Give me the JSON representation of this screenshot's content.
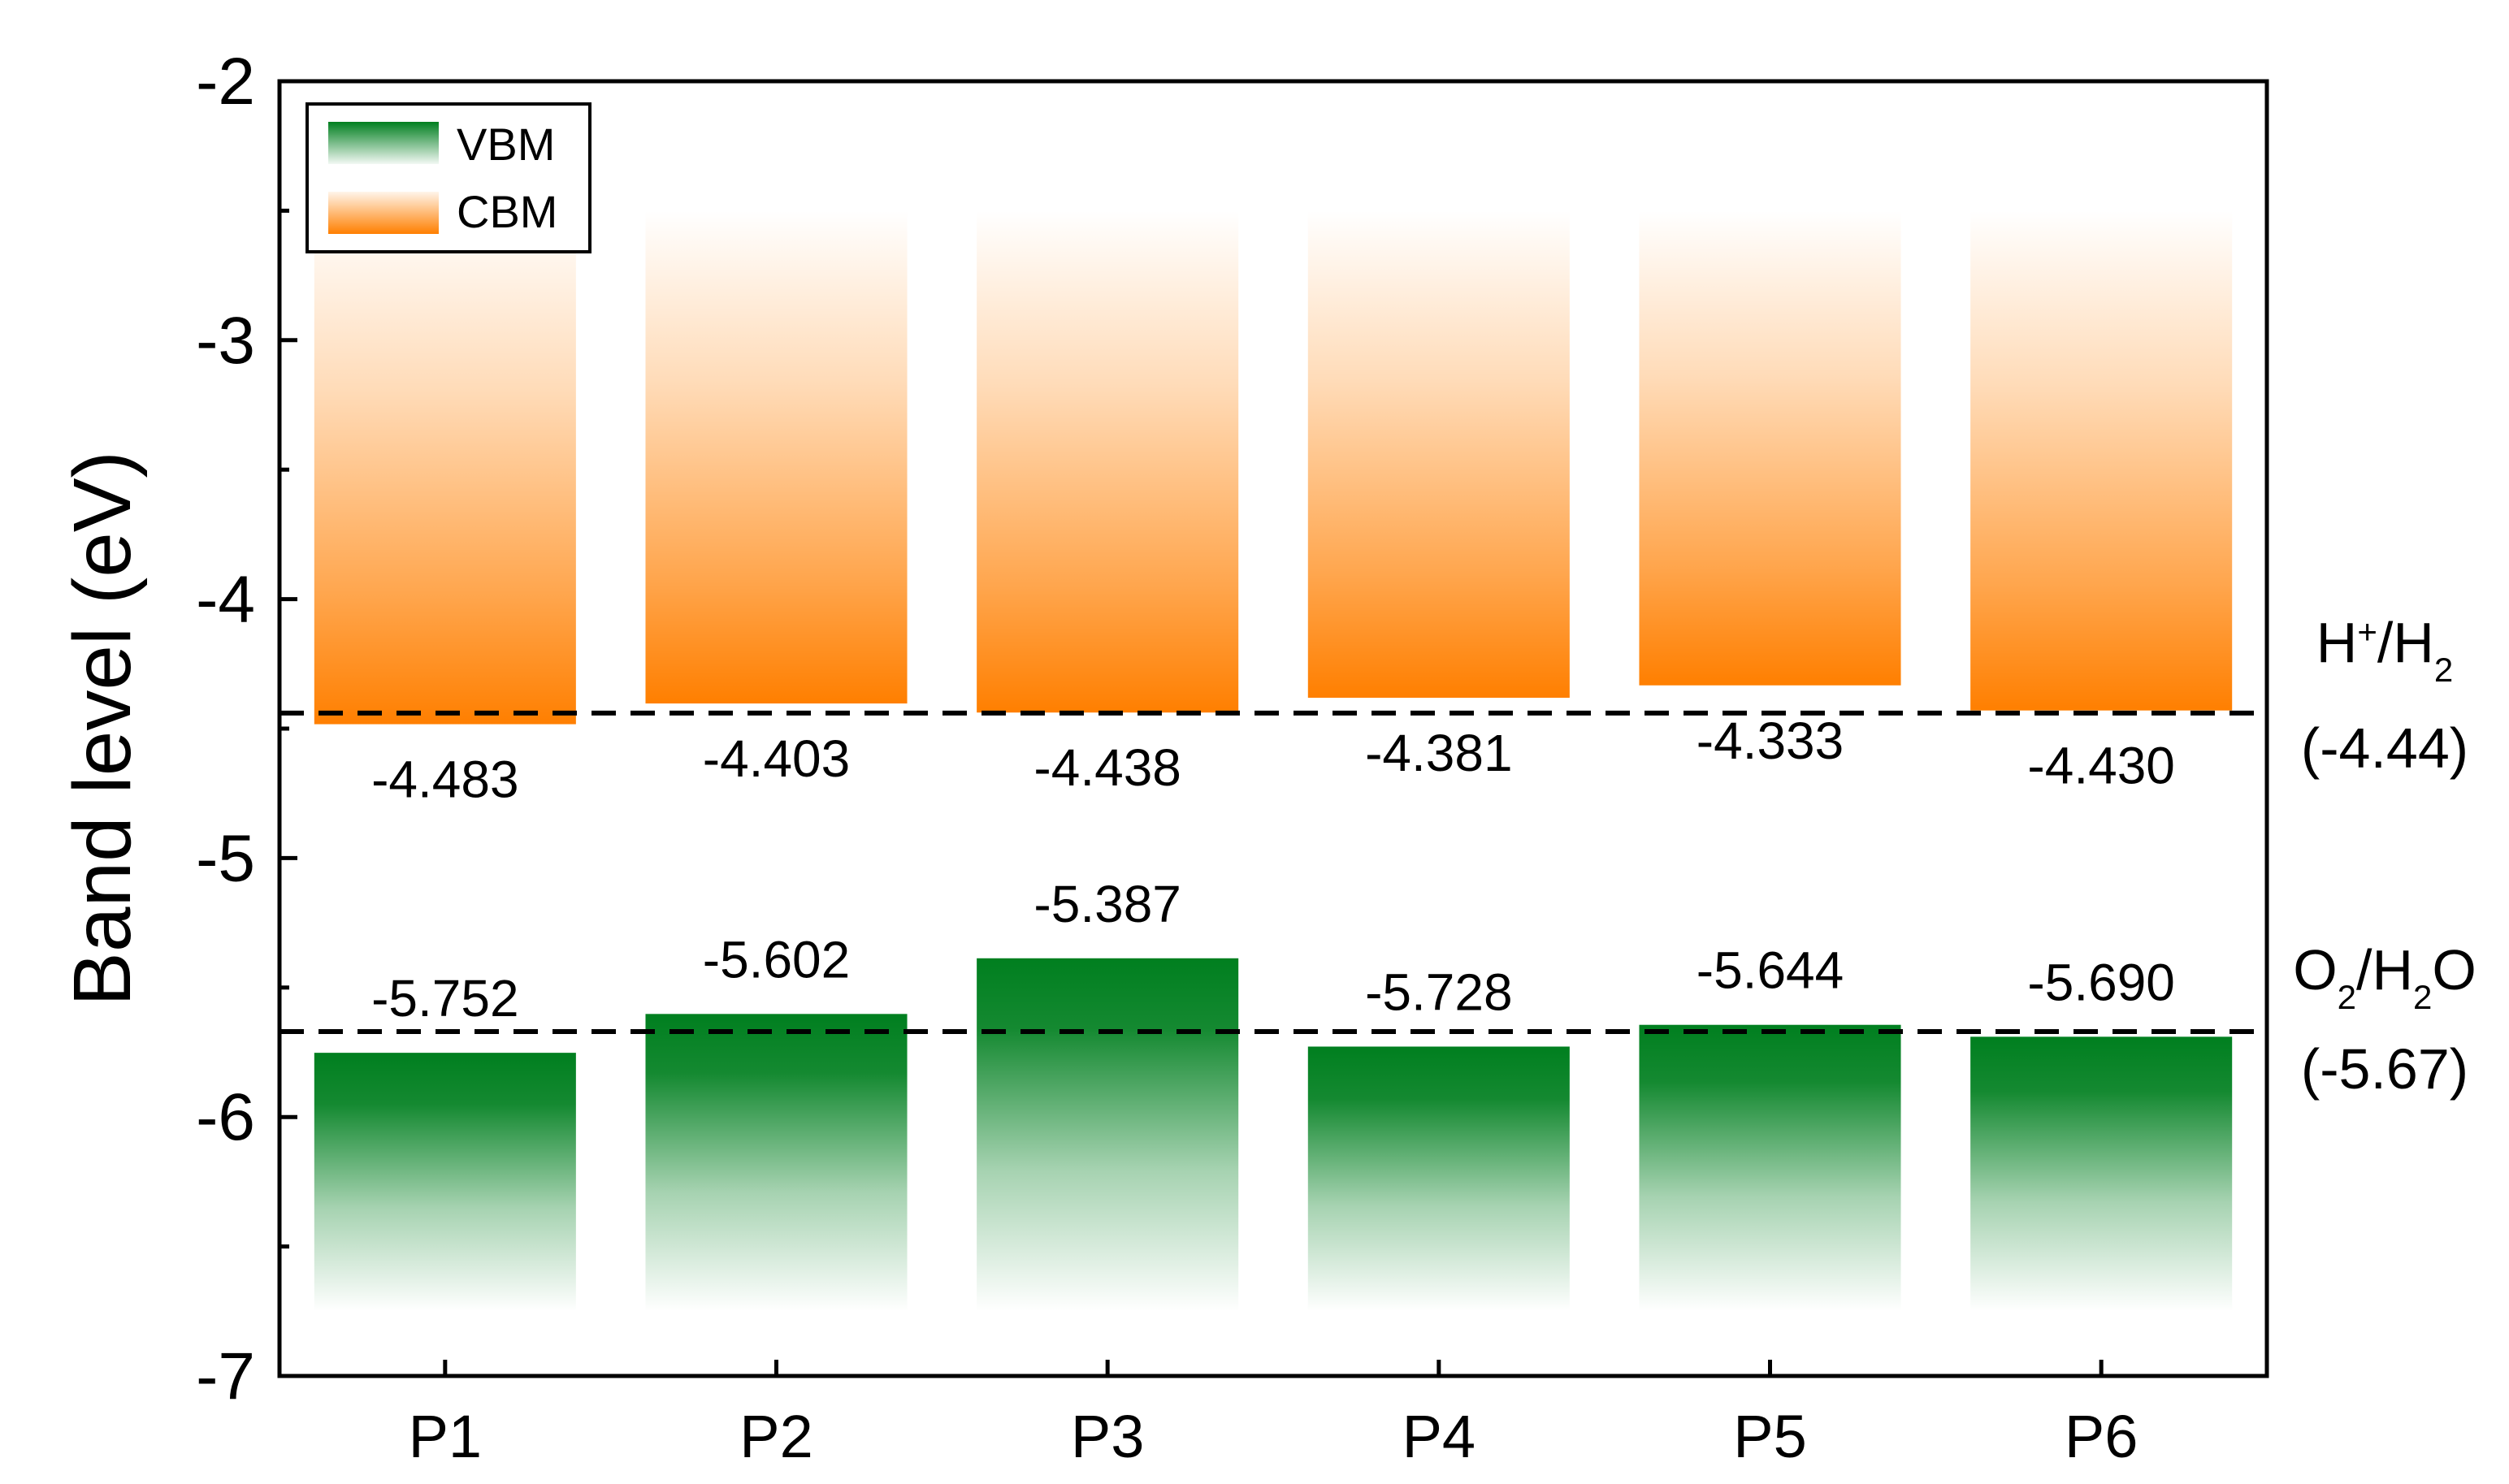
{
  "chart_data": {
    "type": "bar",
    "title": "",
    "xlabel": "",
    "ylabel": "Band level (eV)",
    "ylim": [
      -7,
      -2
    ],
    "yticks": [
      "-2",
      "-3",
      "-4",
      "-5",
      "-6",
      "-7"
    ],
    "categories": [
      "P1",
      "P2",
      "P3",
      "P4",
      "P5",
      "P6"
    ],
    "bar_range": [
      -6.75,
      -2.5
    ],
    "series": [
      {
        "name": "CBM",
        "color": "#ff7f00",
        "values": [
          -4.483,
          -4.403,
          -4.438,
          -4.381,
          -4.333,
          -4.43
        ],
        "labels": [
          "-4.483",
          "-4.403",
          "-4.438",
          "-4.381",
          "-4.333",
          "-4.430"
        ]
      },
      {
        "name": "VBM",
        "color": "#007f1f",
        "values": [
          -5.752,
          -5.602,
          -5.387,
          -5.728,
          -5.644,
          -5.69
        ],
        "labels": [
          "-5.752",
          "-5.602",
          "-5.387",
          "-5.728",
          "-5.644",
          "-5.690"
        ]
      }
    ],
    "reference_lines": [
      {
        "name_sup": "H",
        "sup": "+",
        "mid": "/H",
        "sub": "2",
        "value": -4.44,
        "value_label": "(-4.44)",
        "style": "dashed"
      },
      {
        "name_sup": "O",
        "sub1": "2",
        "mid": "/H",
        "sub2": "2",
        "tail": "O",
        "value": -5.67,
        "value_label": "(-5.67)",
        "style": "dashed"
      }
    ],
    "legend": {
      "position": "top-left",
      "entries": [
        "VBM",
        "CBM"
      ]
    },
    "grid": false
  }
}
